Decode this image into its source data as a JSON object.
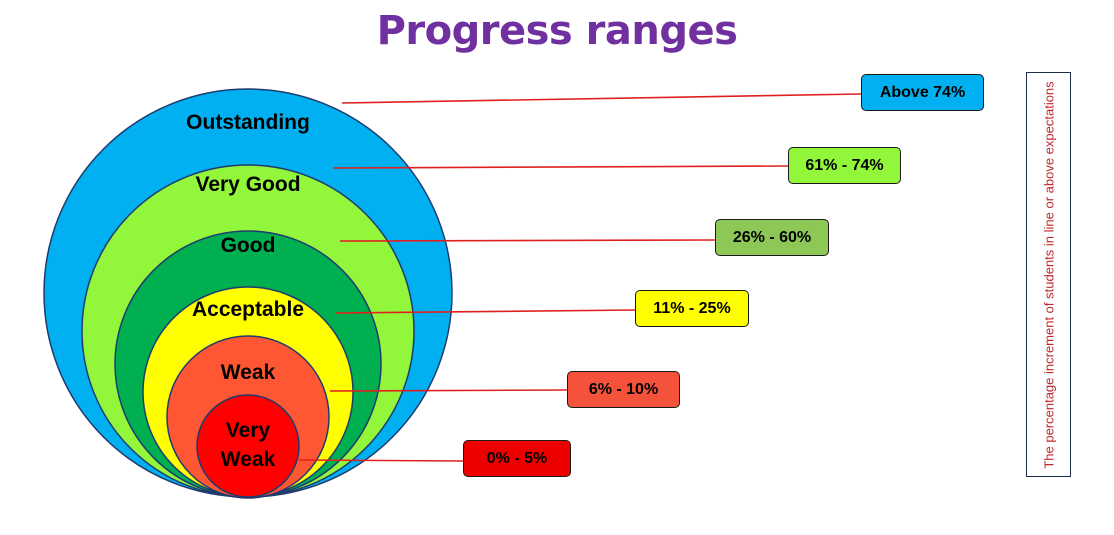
{
  "title": "Progress ranges",
  "side_note": "The percentage increment of students in line or above expectations",
  "levels": [
    {
      "label": "Outstanding",
      "range": "Above 74%",
      "color": "#00b0f0",
      "box_color": "#00b0f0"
    },
    {
      "label": "Very Good",
      "range": "61% - 74%",
      "color": "#92f73b",
      "box_color": "#92f73b"
    },
    {
      "label": "Good",
      "range": "26% - 60%",
      "color": "#00b050",
      "box_color": "#8dc856"
    },
    {
      "label": "Acceptable",
      "range": "11% - 25%",
      "color": "#ffff00",
      "box_color": "#ffff00"
    },
    {
      "label": "Weak",
      "range": "6% - 10%",
      "color": "#ff5733",
      "box_color": "#f4523b"
    },
    {
      "label": "Very Weak",
      "label_lines": [
        "Very",
        "Weak"
      ],
      "range": "0% - 5%",
      "color": "#ff0000",
      "box_color": "#ee0000"
    }
  ],
  "connector_color": "#e02020"
}
